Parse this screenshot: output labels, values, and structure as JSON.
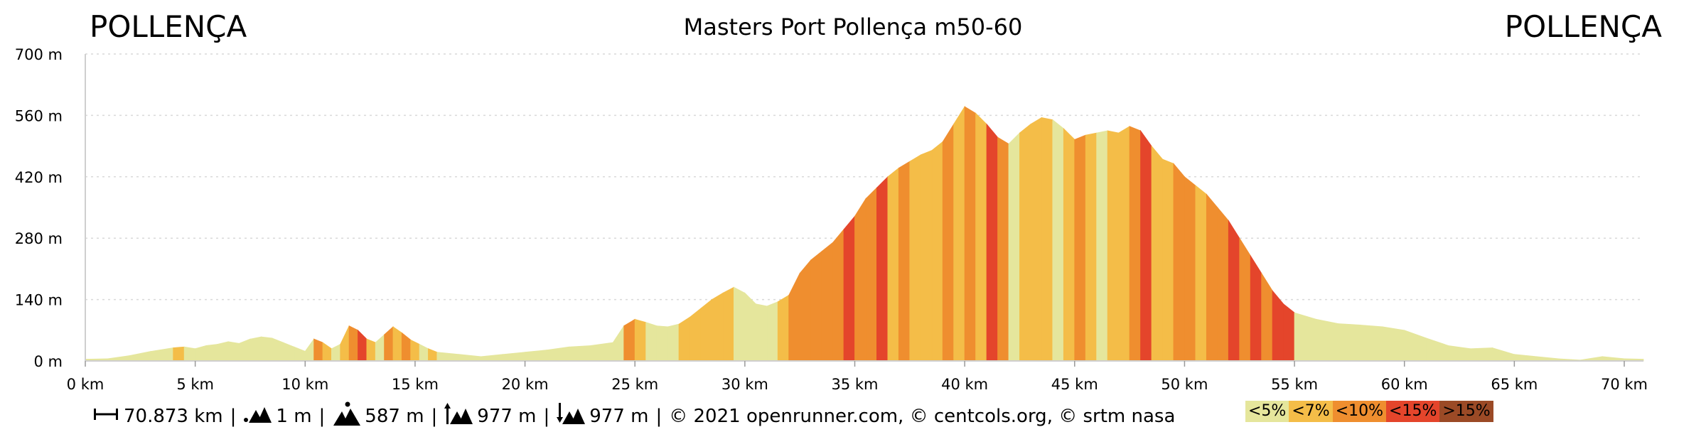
{
  "header": {
    "start": "POLLENÇA",
    "title": "Masters Port Pollença m50-60",
    "end": "POLLENÇA"
  },
  "footer": {
    "distance": "70.873 km",
    "min_alt": "1 m",
    "max_alt": "587 m",
    "ascent": "977 m",
    "descent": "977 m",
    "credits": "© 2021 openrunner.com, © centcols.org, © srtm nasa",
    "separator": "|"
  },
  "legend": [
    {
      "label": "<5%",
      "color": "#e5e69c"
    },
    {
      "label": "<7%",
      "color": "#f4bd48"
    },
    {
      "label": "<10%",
      "color": "#ef8e2f"
    },
    {
      "label": "<15%",
      "color": "#e4452b"
    },
    {
      "label": ">15%",
      "color": "#9b4a26"
    }
  ],
  "chart_data": {
    "type": "area",
    "title": "Masters Port Pollença m50-60",
    "xlabel": "",
    "ylabel": "",
    "xlim": [
      0,
      70.873
    ],
    "ylim": [
      0,
      700
    ],
    "y_ticks": [
      0,
      140,
      280,
      420,
      560,
      700
    ],
    "y_tick_labels": [
      "0 m",
      "140 m",
      "280 m",
      "420 m",
      "560 m",
      "700 m"
    ],
    "x_ticks": [
      0,
      5,
      10,
      15,
      20,
      25,
      30,
      35,
      40,
      45,
      50,
      55,
      60,
      65,
      70
    ],
    "x_tick_labels": [
      "0 km",
      "5 km",
      "10 km",
      "15 km",
      "20 km",
      "25 km",
      "30 km",
      "35 km",
      "40 km",
      "45 km",
      "50 km",
      "55 km",
      "60 km",
      "65 km",
      "70 km"
    ],
    "grid": "horizontal dotted",
    "x": [
      0,
      1,
      2,
      3,
      4,
      4.5,
      5,
      5.5,
      6,
      6.5,
      7,
      7.5,
      8,
      8.5,
      9,
      9.5,
      10,
      10.4,
      10.8,
      11.2,
      11.6,
      12,
      12.4,
      12.8,
      13.2,
      13.6,
      14,
      14.4,
      14.8,
      15.2,
      15.6,
      16,
      17,
      18,
      19,
      20,
      21,
      22,
      23,
      24,
      24.5,
      25,
      25.5,
      26,
      26.5,
      27,
      27.5,
      28,
      28.5,
      29,
      29.5,
      30,
      30.5,
      31,
      31.5,
      32,
      32.5,
      33,
      33.5,
      34,
      34.5,
      35,
      35.5,
      36,
      36.5,
      37,
      37.5,
      38,
      38.5,
      39,
      39.5,
      40,
      40.5,
      41,
      41.5,
      42,
      42.5,
      43,
      43.5,
      44,
      44.5,
      45,
      45.5,
      46,
      46.5,
      47,
      47.5,
      48,
      48.5,
      49,
      49.5,
      50,
      50.5,
      51,
      51.5,
      52,
      52.5,
      53,
      53.5,
      54,
      54.5,
      55,
      56,
      57,
      58,
      59,
      60,
      61,
      62,
      63,
      64,
      65,
      66,
      67,
      68,
      69,
      70,
      70.873
    ],
    "y": [
      4,
      5,
      12,
      22,
      30,
      32,
      28,
      35,
      38,
      44,
      40,
      50,
      55,
      52,
      42,
      32,
      22,
      50,
      42,
      28,
      38,
      80,
      70,
      50,
      42,
      60,
      78,
      64,
      48,
      38,
      28,
      20,
      15,
      10,
      15,
      20,
      25,
      32,
      35,
      42,
      80,
      95,
      88,
      80,
      78,
      84,
      100,
      120,
      140,
      155,
      168,
      155,
      130,
      125,
      135,
      150,
      200,
      230,
      250,
      270,
      300,
      330,
      370,
      395,
      420,
      440,
      455,
      470,
      480,
      500,
      540,
      580,
      565,
      540,
      510,
      495,
      520,
      540,
      555,
      550,
      530,
      505,
      515,
      520,
      525,
      520,
      535,
      525,
      490,
      460,
      450,
      420,
      400,
      380,
      350,
      320,
      280,
      240,
      200,
      160,
      130,
      110,
      95,
      85,
      82,
      78,
      70,
      52,
      35,
      28,
      30,
      15,
      10,
      5,
      2,
      10,
      5,
      4
    ],
    "gradient_class": [
      0,
      0,
      0,
      0,
      1,
      0,
      0,
      0,
      0,
      0,
      0,
      0,
      0,
      0,
      0,
      0,
      0,
      2,
      1,
      0,
      1,
      2,
      3,
      1,
      0,
      2,
      1,
      2,
      1,
      0,
      1,
      0,
      0,
      0,
      0,
      0,
      0,
      0,
      0,
      0,
      2,
      1,
      0,
      0,
      0,
      1,
      1,
      1,
      1,
      1,
      0,
      0,
      0,
      0,
      1,
      2,
      2,
      2,
      2,
      2,
      3,
      2,
      2,
      3,
      1,
      2,
      1,
      1,
      1,
      2,
      1,
      2,
      1,
      3,
      2,
      0,
      1,
      1,
      1,
      0,
      1,
      2,
      1,
      0,
      1,
      1,
      2,
      3,
      1,
      1,
      2,
      2,
      1,
      2,
      2,
      3,
      2,
      3,
      2,
      3,
      3,
      0,
      0,
      0,
      0,
      0,
      0,
      0,
      0,
      0,
      0,
      0,
      0,
      0,
      0,
      0,
      0
    ]
  }
}
